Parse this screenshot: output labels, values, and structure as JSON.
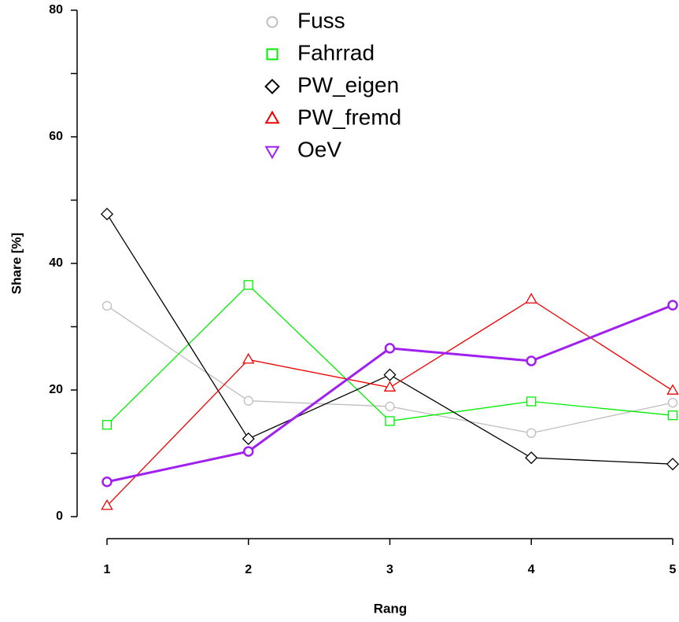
{
  "chart_data": {
    "type": "line",
    "x_label": "Rang",
    "y_label": "Share [%]",
    "x": [
      1,
      2,
      3,
      4,
      5
    ],
    "xlim": [
      1,
      5
    ],
    "xticks": [
      1,
      2,
      3,
      4,
      5
    ],
    "ylim": [
      0,
      80
    ],
    "yticks": [
      0,
      20,
      40,
      60,
      80
    ],
    "yminor_ticks": [
      10,
      30,
      50,
      70
    ],
    "legend": "top",
    "series": [
      {
        "name": "Fuss",
        "color": "#bebebe",
        "marker": "circle",
        "line_width": 1.3,
        "values": [
          33.3,
          18.3,
          17.4,
          13.2,
          18.0
        ]
      },
      {
        "name": "Fahrrad",
        "color": "#00ee00",
        "marker": "square",
        "line_width": 1.3,
        "values": [
          14.5,
          36.6,
          15.1,
          18.2,
          16.0
        ]
      },
      {
        "name": "PW_eigen",
        "color": "#000000",
        "marker": "diamond",
        "line_width": 1.3,
        "values": [
          47.8,
          12.3,
          22.4,
          9.3,
          8.3
        ]
      },
      {
        "name": "PW_fremd",
        "color": "#ee0000",
        "marker": "triangle",
        "line_width": 1.3,
        "values": [
          1.7,
          24.8,
          20.4,
          34.3,
          19.9
        ]
      },
      {
        "name": "OeV",
        "color": "#a020f0",
        "marker": "circle",
        "legend_marker": "triangle-down",
        "line_width": 3,
        "values": [
          5.5,
          10.3,
          26.6,
          24.6,
          33.4
        ]
      }
    ]
  }
}
